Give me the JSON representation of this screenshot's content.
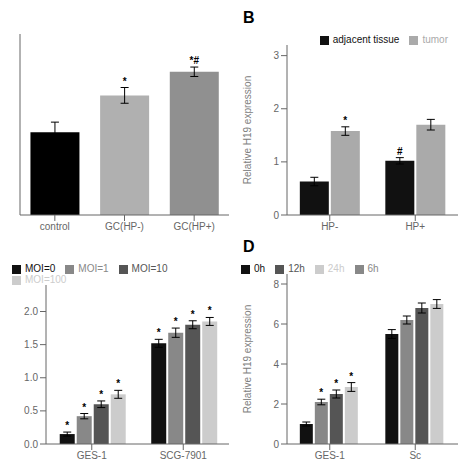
{
  "chart_data": [
    {
      "type": "bar",
      "categories": [
        "control",
        "GC(HP-)",
        "GC(HP+)"
      ],
      "values": [
        1.05,
        1.52,
        1.82
      ],
      "errors": [
        0.13,
        0.1,
        0.06
      ],
      "colors": [
        "#000000",
        "#b0b0b0",
        "#909090"
      ],
      "annotations": [
        null,
        "*",
        "*#"
      ],
      "ylim": [
        0,
        2.3
      ],
      "yticks": [],
      "tick_labels": "x"
    },
    {
      "type": "bar",
      "title": "B",
      "categories": [
        "HP-",
        "HP+"
      ],
      "ylabel": "Relative H19 expression",
      "series": [
        {
          "name": "adjacent tissue",
          "color": "#111111",
          "values": [
            0.63,
            1.02
          ],
          "errors": [
            0.08,
            0.06
          ],
          "annotations": [
            null,
            "#"
          ]
        },
        {
          "name": "tumor",
          "color": "#aaaaaa",
          "values": [
            1.58,
            1.7
          ],
          "errors": [
            0.08,
            0.1
          ],
          "annotations": [
            "*",
            null
          ]
        }
      ],
      "ylim": [
        0,
        3.2
      ],
      "yticks": [
        0,
        1,
        2,
        3
      ],
      "legend": "upper right"
    },
    {
      "type": "bar",
      "categories": [
        "GES-1",
        "SCG-7901"
      ],
      "series": [
        {
          "name": "MOI=0",
          "color": "#111111",
          "values": [
            0.15,
            1.52
          ],
          "errors": [
            0.03,
            0.06
          ],
          "annotations": [
            "*",
            "*"
          ]
        },
        {
          "name": "MOI=1",
          "color": "#888888",
          "values": [
            0.42,
            1.68
          ],
          "errors": [
            0.04,
            0.07
          ],
          "annotations": [
            "*",
            "*"
          ]
        },
        {
          "name": "MOI=10",
          "color": "#555555",
          "values": [
            0.6,
            1.8
          ],
          "errors": [
            0.05,
            0.06
          ],
          "annotations": [
            "*",
            "*"
          ]
        },
        {
          "name": "MOI=100",
          "color": "#cccccc",
          "values": [
            0.75,
            1.85
          ],
          "errors": [
            0.06,
            0.06
          ],
          "annotations": [
            "*",
            "*"
          ]
        }
      ],
      "ylim": [
        0,
        2.4
      ],
      "yticks": [
        {
          "value": 0,
          "label": "0.0"
        },
        0.5,
        {
          "value": 1,
          "label": "1.0"
        },
        1.5,
        {
          "value": 2,
          "label": "2.0"
        }
      ],
      "legend": "upper left"
    },
    {
      "type": "bar",
      "title": "D",
      "categories": [
        "GES-1",
        "Sc"
      ],
      "ylabel": "Relative H19 expression",
      "series": [
        {
          "name": "0h",
          "color": "#111111",
          "values": [
            1.0,
            5.5
          ],
          "errors": [
            0.1,
            0.22
          ],
          "annotations": [
            null,
            null
          ]
        },
        {
          "name": "6h",
          "color": "#888888",
          "values": [
            2.1,
            6.2
          ],
          "errors": [
            0.14,
            0.2
          ],
          "annotations": [
            "*",
            null
          ]
        },
        {
          "name": "12h",
          "color": "#555555",
          "values": [
            2.5,
            6.8
          ],
          "errors": [
            0.2,
            0.25
          ],
          "annotations": [
            "*",
            null
          ]
        },
        {
          "name": "24h",
          "color": "#cccccc",
          "values": [
            2.85,
            7.0
          ],
          "errors": [
            0.22,
            0.22
          ],
          "annotations": [
            "*",
            null
          ]
        }
      ],
      "ylim": [
        0,
        8.5
      ],
      "yticks": [
        0,
        2,
        4,
        6,
        8
      ],
      "ylabel_dummy_removed": null,
      "legend": "upper left"
    }
  ]
}
